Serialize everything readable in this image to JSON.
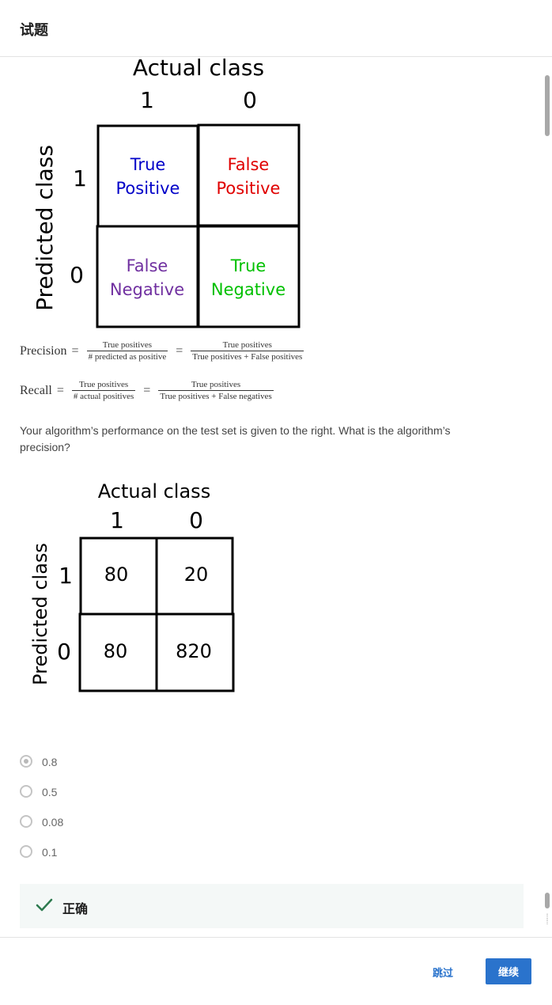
{
  "header": {
    "title": "试题"
  },
  "matrix1": {
    "actual_label": "Actual class",
    "predicted_label": "Predicted class",
    "col_1": "1",
    "col_0": "0",
    "row_1": "1",
    "row_0": "0",
    "tp_line1": "True",
    "tp_line2": "Positive",
    "fp_line1": "False",
    "fp_line2": "Positive",
    "fn_line1": "False",
    "fn_line2": "Negative",
    "tn_line1": "True",
    "tn_line2": "Negative",
    "colors": {
      "tp": "#0000c8",
      "fp": "#e00000",
      "fn": "#7030a0",
      "tn": "#00c000"
    }
  },
  "formulas": {
    "precision": {
      "label": "Precision",
      "eq": "=",
      "frac1_num": "True positives",
      "frac1_den": "# predicted as positive",
      "frac2_num": "True positives",
      "frac2_den": "True positives + False positives"
    },
    "recall": {
      "label": "Recall",
      "eq": "=",
      "frac1_num": "True positives",
      "frac1_den": "# actual positives",
      "frac2_num": "True positives",
      "frac2_den": "True positives + False negatives"
    }
  },
  "question": {
    "text": "Your algorithm’s performance on the test set is given to the right. What is the algorithm’s precision?"
  },
  "matrix2": {
    "actual_label": "Actual class",
    "predicted_label": "Predicted class",
    "col_1": "1",
    "col_0": "0",
    "row_1": "1",
    "row_0": "0",
    "tp": "80",
    "fp": "20",
    "fn": "80",
    "tn": "820"
  },
  "options": [
    {
      "label": "0.8",
      "selected": true
    },
    {
      "label": "0.5",
      "selected": false
    },
    {
      "label": "0.08",
      "selected": false
    },
    {
      "label": "0.1",
      "selected": false
    }
  ],
  "feedback": {
    "text": "正确",
    "color": "#2d7a4f"
  },
  "footer": {
    "skip_label": "跳过",
    "continue_label": "继续",
    "accent": "#2a73cc"
  }
}
